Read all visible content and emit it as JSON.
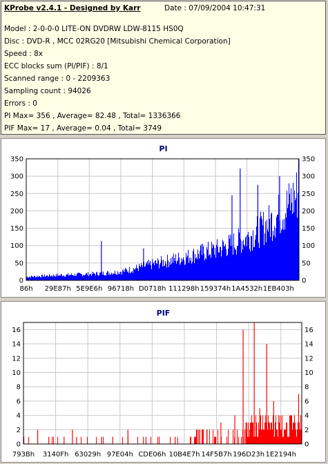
{
  "info": {
    "title": "KProbe v2.4.1 - Designed by Karr",
    "date": "Date : 07/09/2004 10:47:31",
    "lines": [
      "Model : 2-0-0-0 LITE-ON DVDRW LDW-8115   HS0Q",
      "Disc : DVD-R , MCC 02RG20  [Mitsubishi Chemical Corporation]",
      "Speed : 8x",
      "ECC blocks sum (PI/PIF) : 8/1",
      "Scanned range : 0 - 2209363",
      "Sampling count : 94026",
      "Errors : 0",
      "PI Max= 356 , Average= 82.48 , Total= 1336366",
      "PIF Max= 17 , Average= 0.04 , Total= 3749"
    ]
  },
  "chart_data": [
    {
      "type": "area",
      "title": "PI",
      "color": "#0000ff",
      "ylim": [
        0,
        350
      ],
      "yticks": [
        0,
        50,
        100,
        150,
        200,
        250,
        300,
        350
      ],
      "xticklabels": [
        "86h",
        "29E87h",
        "5E9E6h",
        "96718h",
        "D0718h",
        "111298h",
        "159374h",
        "1A4532h",
        "1EB403h"
      ],
      "grid": true,
      "series": [
        {
          "x": [
            0,
            0.05,
            0.1,
            0.15,
            0.2,
            0.25,
            0.3,
            0.35,
            0.4,
            0.45,
            0.5,
            0.55,
            0.6,
            0.65,
            0.7,
            0.75,
            0.8,
            0.85,
            0.9,
            0.95,
            1.0
          ],
          "values": [
            12,
            14,
            17,
            18,
            20,
            22,
            25,
            30,
            40,
            52,
            62,
            72,
            82,
            95,
            105,
            120,
            140,
            165,
            200,
            240,
            300
          ]
        }
      ],
      "spikes": [
        {
          "x": 0.275,
          "value": 113
        },
        {
          "x": 0.43,
          "value": 92
        },
        {
          "x": 0.755,
          "value": 245
        },
        {
          "x": 0.785,
          "value": 322
        },
        {
          "x": 0.85,
          "value": 275
        },
        {
          "x": 0.93,
          "value": 300
        },
        {
          "x": 1.0,
          "value": 356
        }
      ]
    },
    {
      "type": "bar",
      "title": "PIF",
      "color": "#ff0000",
      "ylim": [
        0,
        17
      ],
      "yticks": [
        0,
        2,
        4,
        6,
        8,
        10,
        12,
        14,
        16
      ],
      "xticklabels": [
        "793Bh",
        "3140Fh",
        "63029h",
        "97E04h",
        "CDE06h",
        "10B4E7h",
        "14F5B7h",
        "196D23h",
        "1E2194h"
      ],
      "grid": true,
      "series": [
        {
          "x": [
            0.0,
            0.05,
            0.09,
            0.145,
            0.175,
            0.19,
            0.28,
            0.32,
            0.375,
            0.44,
            0.545,
            0.6,
            0.63,
            0.66,
            0.71,
            0.76,
            0.79,
            0.8,
            0.83,
            0.85,
            0.875,
            0.9,
            0.93,
            0.96,
            0.99
          ],
          "values": [
            1,
            2,
            1,
            1,
            2,
            1,
            1,
            1,
            2,
            1,
            1,
            1,
            2,
            2,
            3,
            4,
            16,
            3,
            17,
            5,
            14,
            6,
            4,
            3,
            7
          ]
        }
      ]
    }
  ]
}
